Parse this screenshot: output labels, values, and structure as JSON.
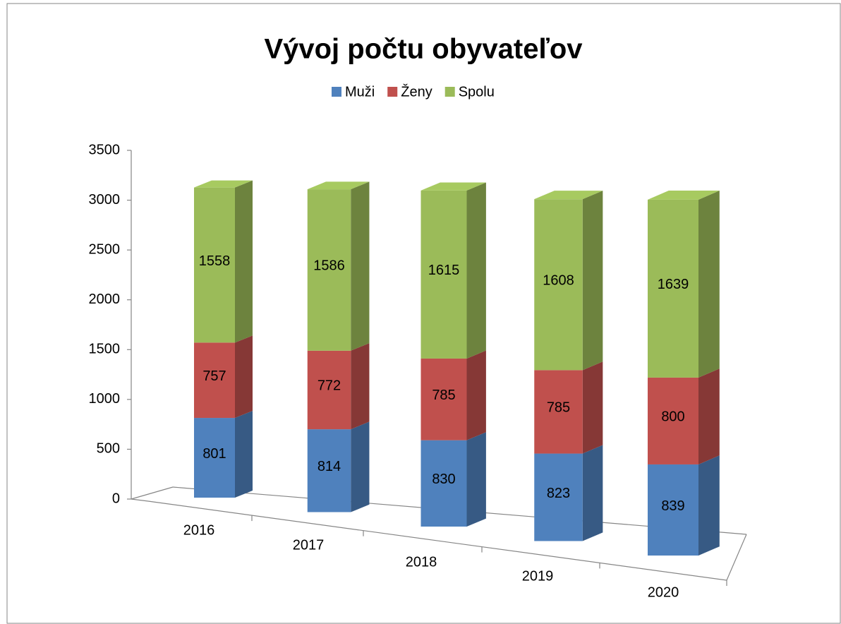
{
  "chart_data": {
    "type": "bar3d_stacked",
    "title": "Vývoj počtu obyvateľov",
    "categories": [
      "2016",
      "2017",
      "2018",
      "2019",
      "2020"
    ],
    "series": [
      {
        "name": "Muži",
        "color": "#4f81bd",
        "values": [
          801,
          814,
          830,
          823,
          839
        ]
      },
      {
        "name": "Ženy",
        "color": "#c0504d",
        "values": [
          757,
          772,
          785,
          785,
          800
        ]
      },
      {
        "name": "Spolu",
        "color": "#9bbb59",
        "values": [
          1558,
          1586,
          1615,
          1608,
          1639
        ]
      }
    ],
    "ylim": [
      0,
      3500
    ],
    "yticks": [
      0,
      500,
      1000,
      1500,
      2000,
      2500,
      3000,
      3500
    ],
    "legend": "top",
    "stacked": true
  }
}
